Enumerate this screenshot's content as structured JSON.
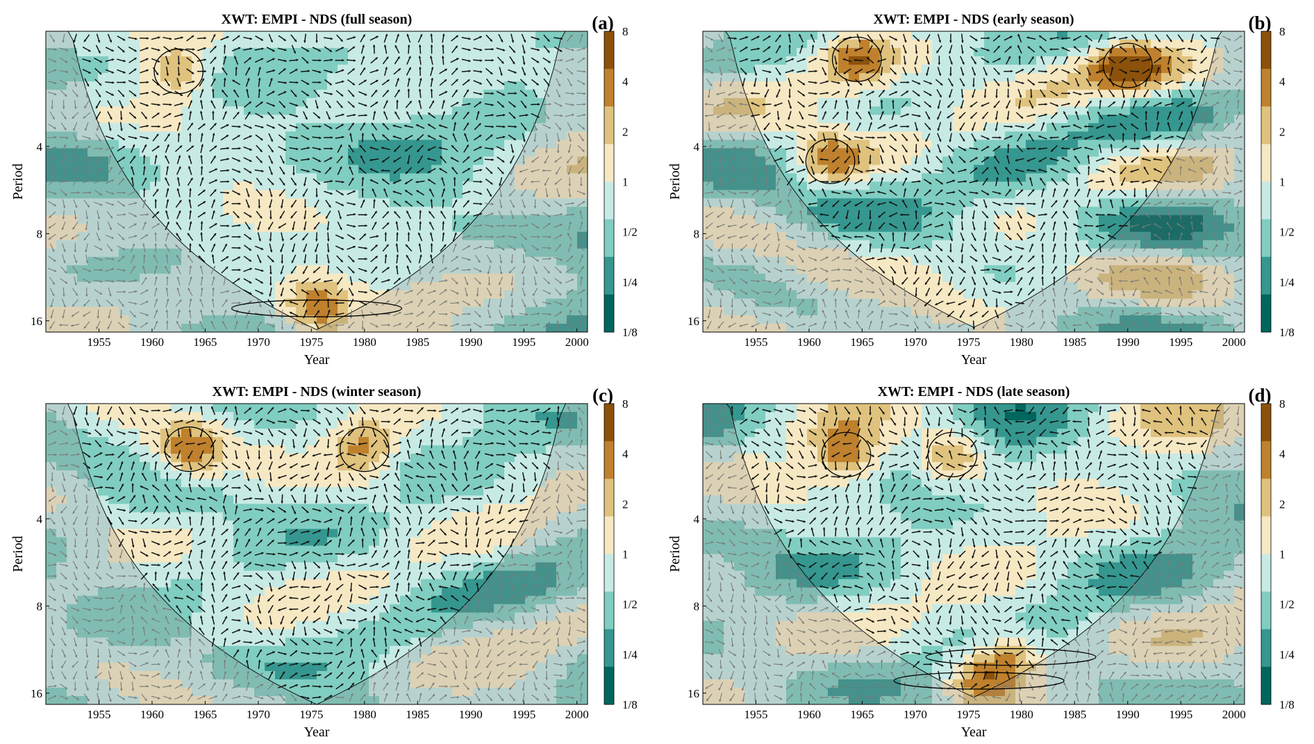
{
  "chart_data": [
    {
      "type": "heatmap",
      "panel": "(a)",
      "title": "XWT: EMPI - NDS (full season)",
      "xlabel": "Year",
      "ylabel": "Period",
      "x_ticks": [
        "1955",
        "1960",
        "1965",
        "1970",
        "1975",
        "1980",
        "1985",
        "1990",
        "1995",
        "2000"
      ],
      "y_ticks": [
        "4",
        "8",
        "16"
      ],
      "colorbar_ticks": [
        "8",
        "4",
        "2",
        "1",
        "1/2",
        "1/4",
        "1/8"
      ],
      "xlim": [
        1950,
        2001
      ],
      "ylim": [
        1.6,
        17.5
      ],
      "y_scale": "log2",
      "coi_min_year": 1976,
      "arrows": "phase",
      "significant_regions": [
        {
          "year_center": 1962.5,
          "period_center": 2.2
        },
        {
          "year_center": 1975.5,
          "period_center": 14.5
        }
      ]
    },
    {
      "type": "heatmap",
      "panel": "(b)",
      "title": "XWT: EMPI - NDS (early season)",
      "xlabel": "Year",
      "ylabel": "Period",
      "x_ticks": [
        "1955",
        "1960",
        "1965",
        "1970",
        "1975",
        "1980",
        "1985",
        "1990",
        "1995",
        "2000"
      ],
      "y_ticks": [
        "4",
        "8",
        "16"
      ],
      "colorbar_ticks": [
        "8",
        "4",
        "2",
        "1",
        "1/2",
        "1/4",
        "1/8"
      ],
      "xlim": [
        1950,
        2001
      ],
      "ylim": [
        1.6,
        17.5
      ],
      "y_scale": "log2",
      "coi_min_year": 1976.5,
      "arrows": "phase",
      "significant_regions": [
        {
          "year_center": 1964.5,
          "period_center": 2.0
        },
        {
          "year_center": 1962.0,
          "period_center": 4.5
        },
        {
          "year_center": 1990.0,
          "period_center": 2.1
        }
      ]
    },
    {
      "type": "heatmap",
      "panel": "(c)",
      "title": "XWT: EMPI - NDS (winter season)",
      "xlabel": "Year",
      "ylabel": "Period",
      "x_ticks": [
        "1955",
        "1960",
        "1965",
        "1970",
        "1975",
        "1980",
        "1985",
        "1990",
        "1995",
        "2000"
      ],
      "y_ticks": [
        "4",
        "8",
        "16"
      ],
      "colorbar_ticks": [
        "8",
        "4",
        "2",
        "1",
        "1/2",
        "1/4",
        "1/8"
      ],
      "xlim": [
        1950,
        2001
      ],
      "ylim": [
        1.6,
        17.5
      ],
      "y_scale": "log2",
      "coi_min_year": 1975.5,
      "arrows": "phase",
      "significant_regions": [
        {
          "year_center": 1963.5,
          "period_center": 2.3
        },
        {
          "year_center": 1980.0,
          "period_center": 2.3
        }
      ]
    },
    {
      "type": "heatmap",
      "panel": "(d)",
      "title": "XWT: EMPI - NDS (late season)",
      "xlabel": "Year",
      "ylabel": "Period",
      "x_ticks": [
        "1955",
        "1960",
        "1965",
        "1970",
        "1975",
        "1980",
        "1985",
        "1990",
        "1995",
        "2000"
      ],
      "y_ticks": [
        "4",
        "8",
        "16"
      ],
      "colorbar_ticks": [
        "8",
        "4",
        "2",
        "1",
        "1/2",
        "1/4",
        "1/8"
      ],
      "xlim": [
        1950,
        2001
      ],
      "ylim": [
        1.6,
        17.5
      ],
      "y_scale": "log2",
      "coi_min_year": 1977,
      "arrows": "phase",
      "significant_regions": [
        {
          "year_center": 1963.5,
          "period_center": 2.4
        },
        {
          "year_center": 1973.5,
          "period_center": 2.4
        },
        {
          "year_center": 1979.0,
          "period_center": 12.0
        },
        {
          "year_center": 1976.0,
          "period_center": 14.5
        }
      ]
    }
  ],
  "colors": {
    "scale": [
      "#01665e",
      "#35978f",
      "#80cdc1",
      "#c7eae5",
      "#f6e8c3",
      "#dfc27d",
      "#bf812d",
      "#8c510a"
    ],
    "coi_shade": "#808080",
    "arrow_inside": "#111111",
    "arrow_outside": "#7a7a7a"
  }
}
